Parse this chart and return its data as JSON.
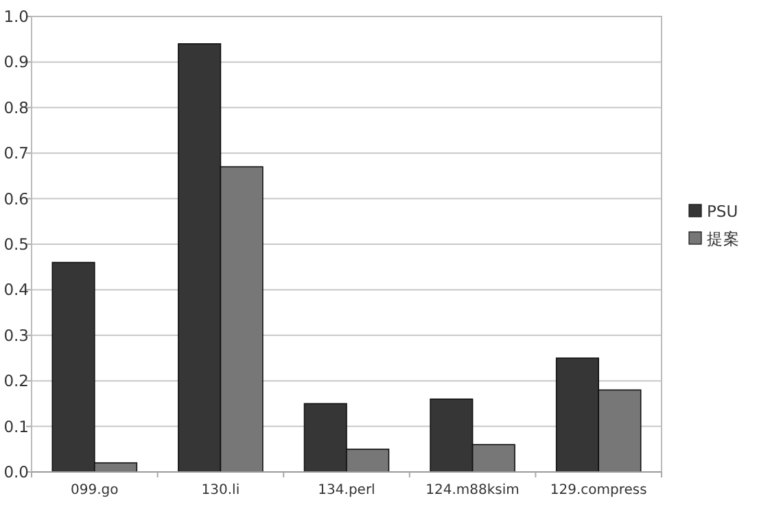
{
  "chart_data": {
    "type": "bar",
    "categories": [
      "099.go",
      "130.li",
      "134.perl",
      "124.m88ksim",
      "129.compress"
    ],
    "series": [
      {
        "name": "PSU",
        "color": "#363636",
        "values": [
          0.46,
          0.94,
          0.15,
          0.16,
          0.25
        ]
      },
      {
        "name": "提案",
        "color": "#777777",
        "values": [
          0.02,
          0.67,
          0.05,
          0.06,
          0.18
        ]
      }
    ],
    "ylim": [
      0,
      1.0
    ],
    "yticks": [
      {
        "value": 0,
        "label": "0.0"
      },
      {
        "value": 0.1,
        "label": "0.1"
      },
      {
        "value": 0.2,
        "label": "0.2"
      },
      {
        "value": 0.3,
        "label": "0.3"
      },
      {
        "value": 0.4,
        "label": "0.4"
      },
      {
        "value": 0.5,
        "label": "0.5"
      },
      {
        "value": 0.6,
        "label": "0.6"
      },
      {
        "value": 0.7,
        "label": "0.7"
      },
      {
        "value": 0.8,
        "label": "0.8"
      },
      {
        "value": 0.9,
        "label": "0.9"
      },
      {
        "value": 1.0,
        "label": "1.0"
      }
    ],
    "grid": "y",
    "legend": "right"
  }
}
